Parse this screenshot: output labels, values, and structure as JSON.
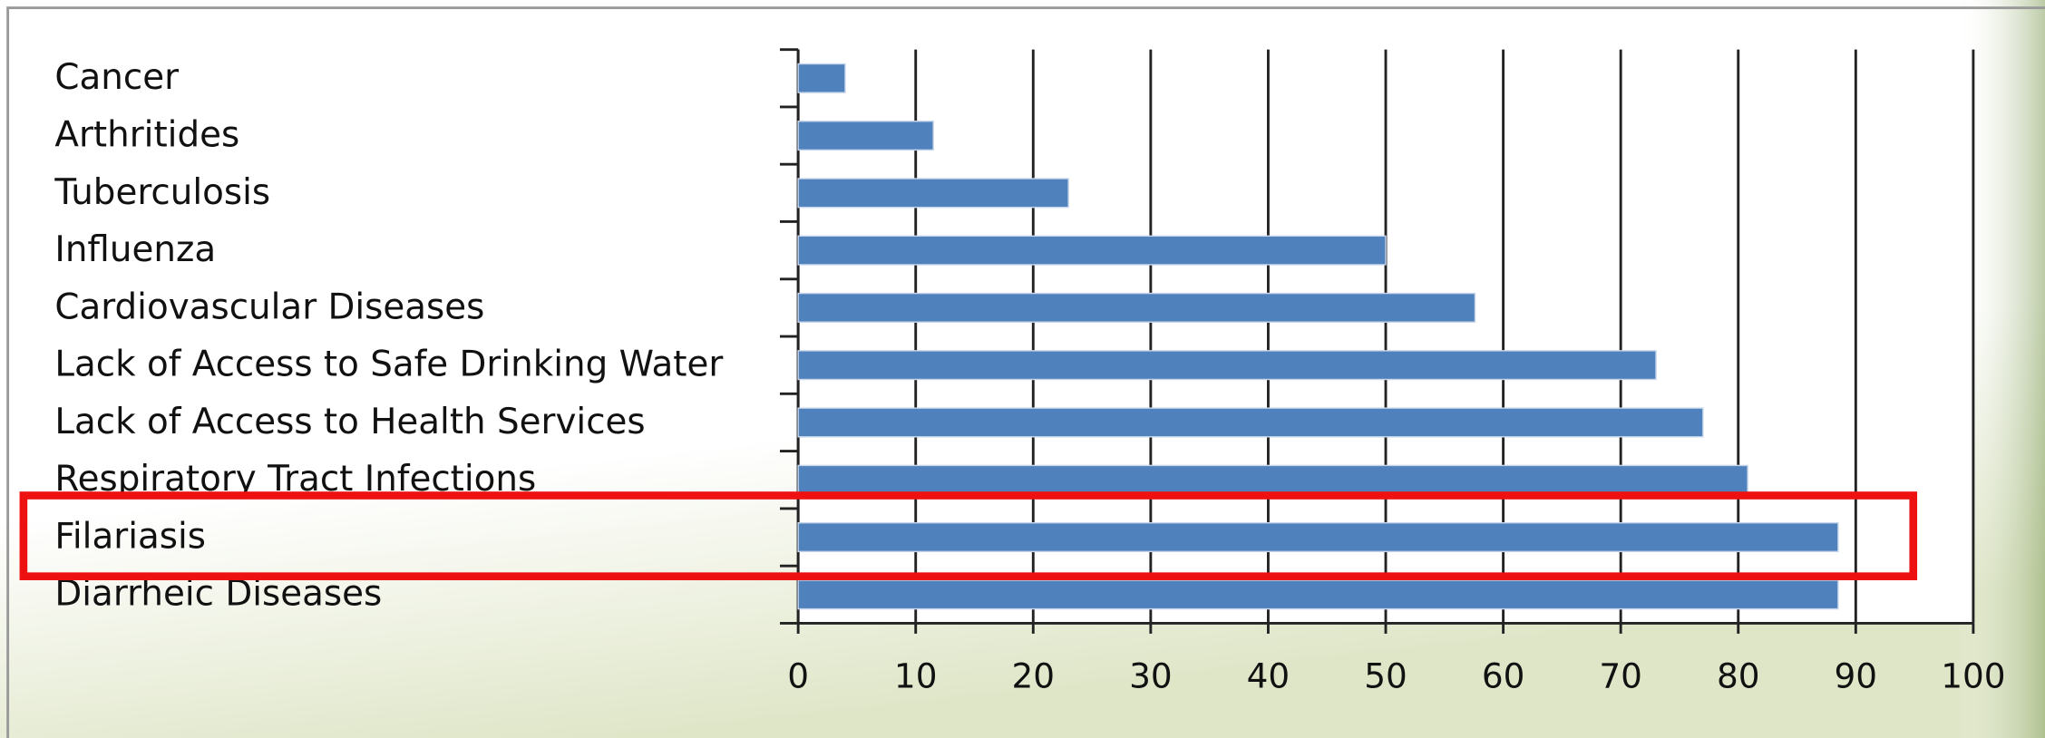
{
  "chart_data": {
    "type": "bar",
    "orientation": "horizontal",
    "categories": [
      "Cancer",
      "Arthritides",
      "Tuberculosis",
      "Influenza",
      "Cardiovascular Diseases",
      "Lack of Access to Safe Drinking Water",
      "Lack of Access to Health Services",
      "Respiratory Tract Infections",
      "Filariasis",
      "Diarrheic Diseases"
    ],
    "values": [
      4,
      11.5,
      23,
      50,
      57.6,
      73,
      77,
      80.8,
      88.5,
      88.5
    ],
    "color": "#4f81bd",
    "xlim": [
      0,
      100
    ],
    "xticks": [
      0,
      10,
      20,
      30,
      40,
      50,
      60,
      70,
      80,
      90,
      100
    ],
    "grid": true
  }
}
